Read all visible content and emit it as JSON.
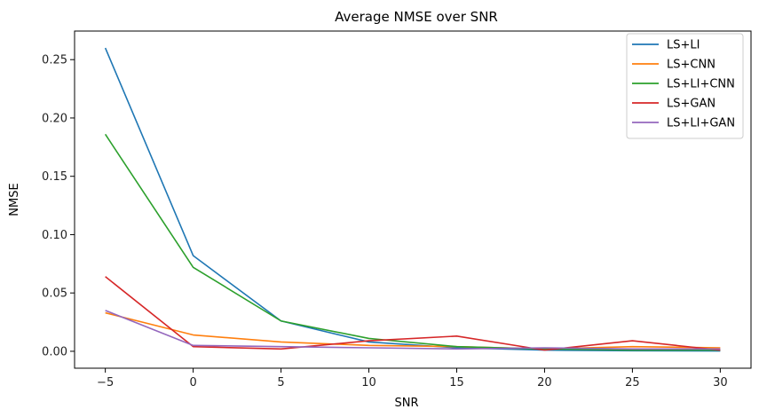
{
  "chart_data": {
    "type": "line",
    "title": "Average NMSE over SNR",
    "xlabel": "SNR",
    "ylabel": "NMSE",
    "x": [
      -5,
      0,
      5,
      10,
      15,
      20,
      25,
      30
    ],
    "xlim": [
      -6.75,
      31.75
    ],
    "ylim": [
      -0.0145,
      0.2745
    ],
    "xticks": [
      -5,
      0,
      5,
      10,
      15,
      20,
      25,
      30
    ],
    "yticks": [
      0.0,
      0.05,
      0.1,
      0.15,
      0.2,
      0.25
    ],
    "grid": false,
    "legend_position": "top-right",
    "series": [
      {
        "name": "LS+LI",
        "color": "#1f77b4",
        "values": [
          0.26,
          0.082,
          0.026,
          0.008,
          0.003,
          0.001,
          0.0005,
          0.0003
        ]
      },
      {
        "name": "LS+CNN",
        "color": "#ff7f0e",
        "values": [
          0.033,
          0.014,
          0.008,
          0.005,
          0.004,
          0.002,
          0.004,
          0.003
        ]
      },
      {
        "name": "LS+LI+CNN",
        "color": "#2ca02c",
        "values": [
          0.186,
          0.072,
          0.026,
          0.011,
          0.004,
          0.002,
          0.001,
          0.001
        ]
      },
      {
        "name": "LS+GAN",
        "color": "#d62728",
        "values": [
          0.064,
          0.004,
          0.002,
          0.009,
          0.013,
          0.001,
          0.009,
          0.001
        ]
      },
      {
        "name": "LS+LI+GAN",
        "color": "#9467bd",
        "values": [
          0.035,
          0.005,
          0.004,
          0.003,
          0.002,
          0.003,
          0.002,
          0.002
        ]
      }
    ]
  }
}
